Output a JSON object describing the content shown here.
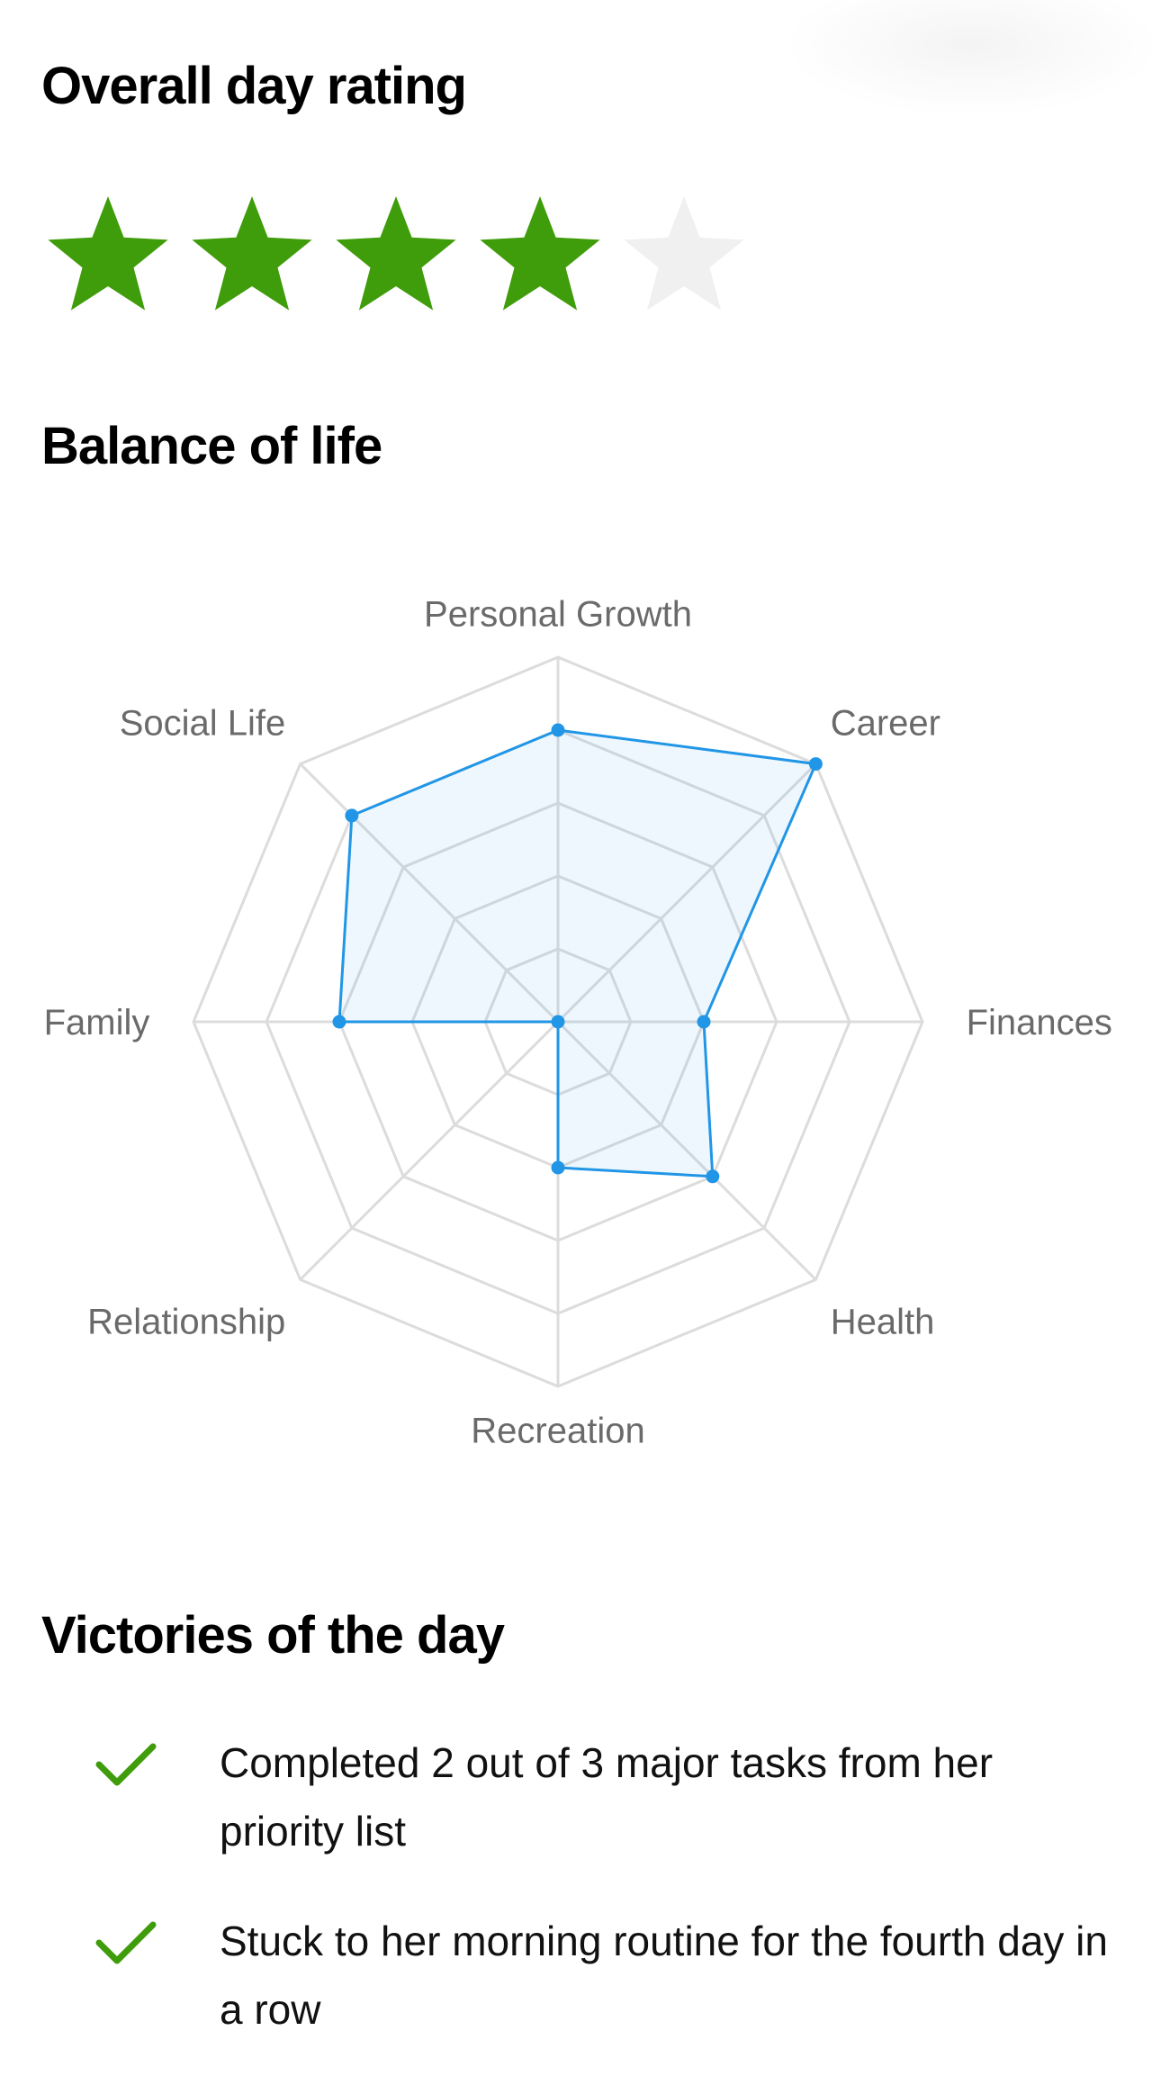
{
  "rating": {
    "title": "Overall day rating",
    "value": 4,
    "max": 5,
    "filled_color": "#3f9c0a",
    "empty_color": "#f0f0f0"
  },
  "balance": {
    "title": "Balance of life"
  },
  "chart_data": {
    "type": "radar",
    "title": "",
    "axes": [
      "Personal Growth",
      "Career",
      "Finances",
      "Health",
      "Recreation",
      "Relationship",
      "Family",
      "Social Life"
    ],
    "rmax": 5,
    "grid_levels": 5,
    "series": [
      {
        "values": [
          4,
          5,
          2,
          3,
          2,
          0,
          3,
          4
        ],
        "color": "#2196e6"
      }
    ],
    "grid": true
  },
  "victories": {
    "title": "Victories of the day",
    "check_color": "#3f9c0a",
    "items": [
      {
        "text": "Completed 2 out of 3 major tasks from her priority list"
      },
      {
        "text": "Stuck to her morning routine for the fourth day in a row"
      }
    ]
  }
}
